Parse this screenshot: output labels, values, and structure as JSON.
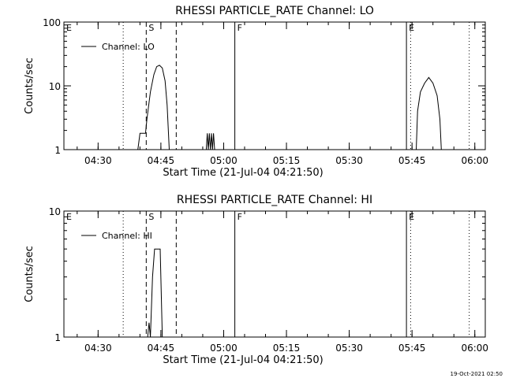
{
  "footer_timestamp": "19-Oct-2021 02:50",
  "colors": {
    "line": "#000000",
    "background": "#ffffff"
  },
  "chart_data": [
    {
      "type": "line",
      "title": "RHESSI PARTICLE_RATE Channel: LO",
      "xlabel": "Start Time (21-Jul-04 04:21:50)",
      "ylabel": "Counts/sec",
      "y_scale": "log",
      "ylim": [
        1,
        100
      ],
      "xlim": [
        "04:21:50",
        "06:02:30"
      ],
      "grid": false,
      "legend_position": "top-left",
      "x_tick_labels": [
        "04:30",
        "04:45",
        "05:00",
        "05:15",
        "05:30",
        "05:45",
        "06:00"
      ],
      "y_tick_labels": [
        "1",
        "10",
        "100"
      ],
      "markers": [
        {
          "label": "E",
          "time": "04:21:50",
          "style": "none"
        },
        {
          "label": "",
          "time": "04:36:00",
          "style": "dotted"
        },
        {
          "label": "S",
          "time": "04:41:30",
          "style": "dashed"
        },
        {
          "label": "",
          "time": "04:48:40",
          "style": "dashed"
        },
        {
          "label": "F",
          "time": "05:02:40",
          "style": "solid"
        },
        {
          "label": "E",
          "time": "05:43:40",
          "style": "solid"
        },
        {
          "label": "",
          "time": "05:44:40",
          "style": "dotted"
        },
        {
          "label": "",
          "time": "05:58:40",
          "style": "dotted"
        }
      ],
      "series": [
        {
          "name": "Channel: LO",
          "points": [
            [
              "04:39:30",
              1
            ],
            [
              "04:40:00",
              1.8
            ],
            [
              "04:41:20",
              1.8
            ],
            [
              "04:41:40",
              3
            ],
            [
              "04:42:30",
              8
            ],
            [
              "04:43:20",
              15
            ],
            [
              "04:44:00",
              20
            ],
            [
              "04:44:40",
              21
            ],
            [
              "04:45:20",
              19
            ],
            [
              "04:46:00",
              12
            ],
            [
              "04:46:30",
              5
            ],
            [
              "04:47:00",
              1
            ],
            [
              "04:55:50",
              1
            ],
            [
              "04:56:05",
              1.8
            ],
            [
              "04:56:20",
              1
            ],
            [
              "04:56:35",
              1.8
            ],
            [
              "04:56:50",
              1
            ],
            [
              "04:57:05",
              1.8
            ],
            [
              "04:57:20",
              1
            ],
            [
              "04:57:35",
              1.8
            ],
            [
              "04:57:50",
              1
            ],
            [
              "05:46:00",
              1
            ],
            [
              "05:46:20",
              4
            ],
            [
              "05:47:00",
              8
            ],
            [
              "05:48:00",
              11
            ],
            [
              "05:49:00",
              13.5
            ],
            [
              "05:50:00",
              11
            ],
            [
              "05:51:00",
              7
            ],
            [
              "05:51:40",
              3
            ],
            [
              "05:52:00",
              1
            ]
          ]
        }
      ]
    },
    {
      "type": "line",
      "title": "RHESSI PARTICLE_RATE Channel: HI",
      "xlabel": "Start Time (21-Jul-04 04:21:50)",
      "ylabel": "Counts/sec",
      "y_scale": "log",
      "ylim": [
        1,
        10
      ],
      "xlim": [
        "04:21:50",
        "06:02:30"
      ],
      "grid": false,
      "legend_position": "top-left",
      "x_tick_labels": [
        "04:30",
        "04:45",
        "05:00",
        "05:15",
        "05:30",
        "05:45",
        "06:00"
      ],
      "y_tick_labels": [
        "1",
        "10"
      ],
      "markers": [
        {
          "label": "E",
          "time": "04:21:50",
          "style": "none"
        },
        {
          "label": "",
          "time": "04:36:00",
          "style": "dotted"
        },
        {
          "label": "S",
          "time": "04:41:30",
          "style": "dashed"
        },
        {
          "label": "",
          "time": "04:48:40",
          "style": "dashed"
        },
        {
          "label": "F",
          "time": "05:02:40",
          "style": "solid"
        },
        {
          "label": "E",
          "time": "05:43:40",
          "style": "solid"
        },
        {
          "label": "",
          "time": "05:44:40",
          "style": "dotted"
        },
        {
          "label": "",
          "time": "05:58:40",
          "style": "dotted"
        }
      ],
      "series": [
        {
          "name": "Channel: HI",
          "points": [
            [
              "04:41:50",
              1
            ],
            [
              "04:42:10",
              1.3
            ],
            [
              "04:42:30",
              1
            ],
            [
              "04:43:00",
              3
            ],
            [
              "04:43:30",
              5
            ],
            [
              "04:44:50",
              5
            ],
            [
              "04:45:20",
              1
            ]
          ]
        }
      ]
    }
  ]
}
